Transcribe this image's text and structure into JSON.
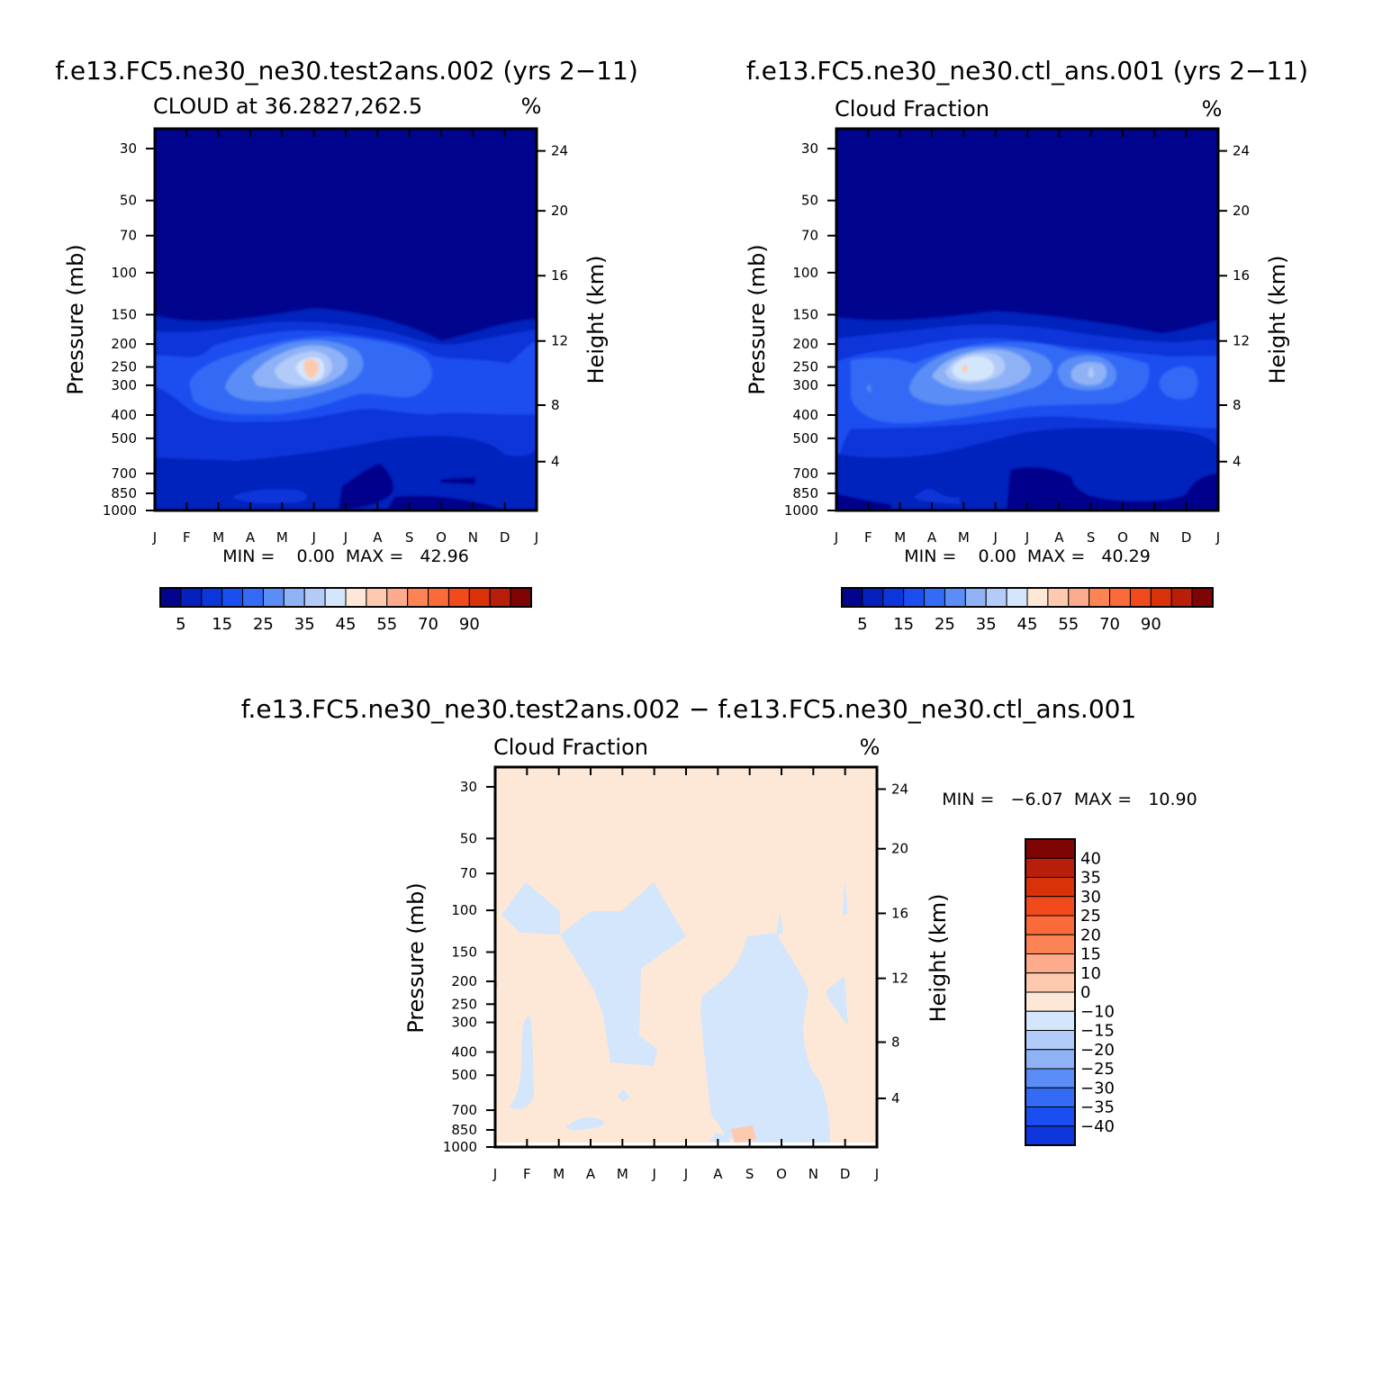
{
  "colors": {
    "pos": [
      "#fde8d8",
      "#fdcab0",
      "#fcab8c",
      "#fc8454",
      "#fb6a3a",
      "#f14a1c",
      "#d93208",
      "#b81e0a",
      "#7f0505"
    ],
    "neg": [
      "#d3e6fb",
      "#b2cbf9",
      "#8fb2f7",
      "#5a8df5",
      "#336bf5",
      "#1b4ef1",
      "#0c36d9",
      "#0520bd",
      "#01048c"
    ],
    "frame": "#000000"
  },
  "figure": {
    "diff_title": "f.e13.FC5.ne30_ne30.test2ans.002 − f.e13.FC5.ne30_ne30.ctl_ans.001"
  },
  "chart_data": [
    {
      "type": "heatmap",
      "title": "f.e13.FC5.ne30_ne30.test2ans.002 (yrs 2−11)",
      "subtitle": "CLOUD at 36.2827,262.5",
      "units": "%",
      "ylabel": "Pressure (mb)",
      "ylabel2": "Height (km)",
      "x_ticks": [
        "J",
        "F",
        "M",
        "A",
        "M",
        "J",
        "J",
        "A",
        "S",
        "O",
        "N",
        "D",
        "J"
      ],
      "y_ticks": [
        "30",
        "50",
        "70",
        "100",
        "150",
        "200",
        "250",
        "300",
        "400",
        "500",
        "700",
        "850",
        "1000"
      ],
      "y2_ticks": [
        "24",
        "20",
        "16",
        "12",
        "8",
        "4"
      ],
      "stats": "MIN =    0.00  MAX =   42.96",
      "min": 0.0,
      "max": 42.96,
      "colorbar": {
        "orientation": "horizontal",
        "labels": [
          "5",
          "15",
          "25",
          "35",
          "45",
          "55",
          "70",
          "90"
        ]
      }
    },
    {
      "type": "heatmap",
      "title": "f.e13.FC5.ne30_ne30.ctl_ans.001 (yrs 2−11)",
      "subtitle": "Cloud Fraction",
      "units": "%",
      "ylabel": "Pressure (mb)",
      "ylabel2": "Height (km)",
      "x_ticks": [
        "J",
        "F",
        "M",
        "A",
        "M",
        "J",
        "J",
        "A",
        "S",
        "O",
        "N",
        "D",
        "J"
      ],
      "y_ticks": [
        "30",
        "50",
        "70",
        "100",
        "150",
        "200",
        "250",
        "300",
        "400",
        "500",
        "700",
        "850",
        "1000"
      ],
      "y2_ticks": [
        "24",
        "20",
        "16",
        "12",
        "8",
        "4"
      ],
      "stats": "MIN =    0.00  MAX =   40.29",
      "min": 0.0,
      "max": 40.29,
      "colorbar": {
        "orientation": "horizontal",
        "labels": [
          "5",
          "15",
          "25",
          "35",
          "45",
          "55",
          "70",
          "90"
        ]
      }
    },
    {
      "type": "heatmap",
      "title": "f.e13.FC5.ne30_ne30.test2ans.002 − f.e13.FC5.ne30_ne30.ctl_ans.001",
      "subtitle": "Cloud Fraction",
      "units": "%",
      "ylabel": "Pressure (mb)",
      "ylabel2": "Height (km)",
      "x_ticks": [
        "J",
        "F",
        "M",
        "A",
        "M",
        "J",
        "J",
        "A",
        "S",
        "O",
        "N",
        "D",
        "J"
      ],
      "y_ticks": [
        "30",
        "50",
        "70",
        "100",
        "150",
        "200",
        "250",
        "300",
        "400",
        "500",
        "700",
        "850",
        "1000"
      ],
      "y2_ticks": [
        "24",
        "20",
        "16",
        "12",
        "8",
        "4"
      ],
      "stats": "MIN =   −6.07  MAX =   10.90",
      "min": -6.07,
      "max": 10.9,
      "colorbar": {
        "orientation": "vertical",
        "labels": [
          "40",
          "35",
          "30",
          "25",
          "20",
          "15",
          "10",
          "0",
          "−10",
          "−15",
          "−20",
          "−25",
          "−30",
          "−35",
          "−40"
        ]
      }
    }
  ]
}
